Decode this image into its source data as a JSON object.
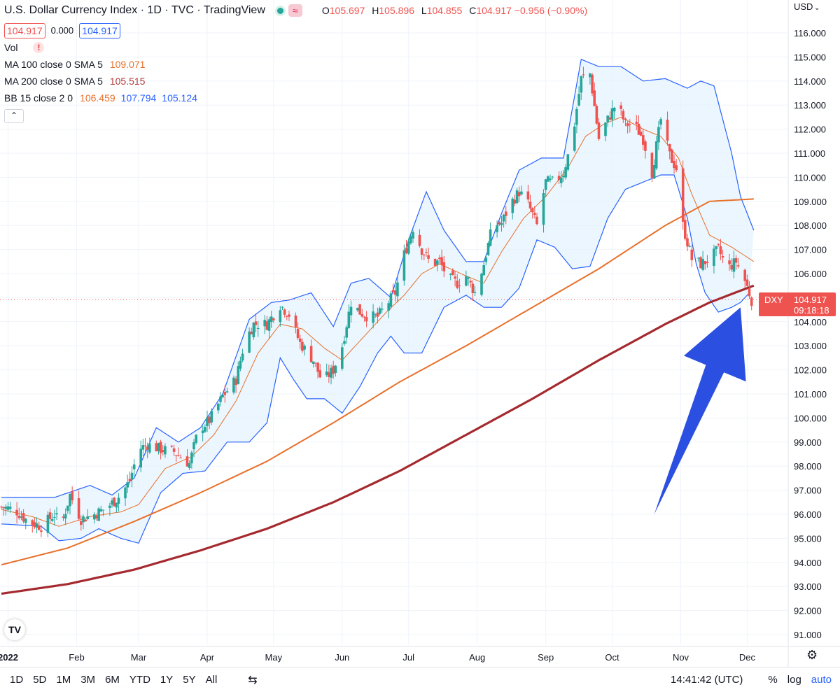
{
  "header": {
    "title": "U.S. Dollar Currency Index · 1D · TVC · TradingView",
    "wave_icon": "≈",
    "ohlc": {
      "o_label": "O",
      "o": "105.697",
      "h_label": "H",
      "h": "105.896",
      "l_label": "L",
      "l": "104.855",
      "c_label": "C",
      "c": "104.917",
      "change": "−0.956 (−0.90%)"
    },
    "bid": "104.917",
    "spread": "0.000",
    "ask": "104.917"
  },
  "indicators": {
    "vol": {
      "name": "Vol",
      "warning": "!"
    },
    "ma100": {
      "name": "MA 100 close 0 SMA 5",
      "value": "109.071"
    },
    "ma200": {
      "name": "MA 200 close 0 SMA 5",
      "value": "105.515"
    },
    "bb": {
      "name": "BB 15 close 2 0",
      "basis": "106.459",
      "upper": "107.794",
      "lower": "105.124"
    },
    "collapse_icon": "⌃"
  },
  "colors": {
    "up": "#26a69a",
    "down": "#ef5350",
    "bb_band": "#2962ff",
    "bb_fill": "#e3f2fd",
    "ma100": "#e8702a",
    "ma200": "#a52a2f",
    "arrow": "#2b4fe0"
  },
  "chart_data": {
    "type": "candlestick",
    "title": "U.S. Dollar Currency Index · 1D · TVC · TradingView",
    "currency": "USD",
    "ylim": [
      90.5,
      117.0
    ],
    "y_ticks": [
      "116.000",
      "115.000",
      "114.000",
      "113.000",
      "112.000",
      "111.000",
      "110.000",
      "109.000",
      "108.000",
      "107.000",
      "106.000",
      "105.000",
      "104.000",
      "103.000",
      "102.000",
      "101.000",
      "100.000",
      "99.000",
      "98.000",
      "97.000",
      "96.000",
      "95.000",
      "94.000",
      "93.000",
      "92.000",
      "91.000"
    ],
    "x_labels": [
      "2022",
      "Feb",
      "Mar",
      "Apr",
      "May",
      "Jun",
      "Jul",
      "Aug",
      "Sep",
      "Oct",
      "Nov",
      "Dec"
    ],
    "x_label_days": [
      3,
      34,
      62,
      93,
      123,
      154,
      184,
      215,
      246,
      276,
      307,
      337
    ],
    "day_range": [
      0,
      341
    ],
    "closes": [
      [
        0,
        96.3
      ],
      [
        6,
        96.2
      ],
      [
        12,
        95.7
      ],
      [
        18,
        95.5
      ],
      [
        24,
        96.0
      ],
      [
        27,
        95.5
      ],
      [
        31,
        96.8
      ],
      [
        36,
        95.8
      ],
      [
        42,
        96.0
      ],
      [
        48,
        96.3
      ],
      [
        54,
        96.8
      ],
      [
        58,
        97.4
      ],
      [
        62,
        98.7
      ],
      [
        66,
        98.9
      ],
      [
        72,
        98.7
      ],
      [
        78,
        98.6
      ],
      [
        85,
        98.1
      ],
      [
        89,
        99.5
      ],
      [
        94,
        99.9
      ],
      [
        100,
        100.9
      ],
      [
        106,
        101.6
      ],
      [
        110,
        103.2
      ],
      [
        114,
        103.9
      ],
      [
        120,
        103.9
      ],
      [
        126,
        104.7
      ],
      [
        130,
        104.3
      ],
      [
        135,
        103.1
      ],
      [
        141,
        102.4
      ],
      [
        145,
        101.5
      ],
      [
        150,
        102.0
      ],
      [
        154,
        103.0
      ],
      [
        158,
        104.8
      ],
      [
        162,
        104.4
      ],
      [
        166,
        104.2
      ],
      [
        170,
        104.2
      ],
      [
        174,
        104.7
      ],
      [
        178,
        105.2
      ],
      [
        182,
        106.8
      ],
      [
        186,
        107.9
      ],
      [
        190,
        107.0
      ],
      [
        194,
        106.4
      ],
      [
        198,
        106.5
      ],
      [
        202,
        105.8
      ],
      [
        206,
        105.6
      ],
      [
        210,
        105.9
      ],
      [
        214,
        105.2
      ],
      [
        218,
        106.4
      ],
      [
        222,
        108.0
      ],
      [
        226,
        108.1
      ],
      [
        230,
        108.9
      ],
      [
        234,
        109.4
      ],
      [
        238,
        108.9
      ],
      [
        242,
        108.0
      ],
      [
        246,
        109.8
      ],
      [
        250,
        109.8
      ],
      [
        254,
        110.2
      ],
      [
        258,
        111.6
      ],
      [
        262,
        114.1
      ],
      [
        266,
        114.3
      ],
      [
        270,
        111.6
      ],
      [
        274,
        112.4
      ],
      [
        278,
        113.1
      ],
      [
        282,
        112.2
      ],
      [
        286,
        112.2
      ],
      [
        290,
        111.6
      ],
      [
        294,
        110.2
      ],
      [
        298,
        112.4
      ],
      [
        302,
        110.9
      ],
      [
        306,
        110.2
      ],
      [
        308,
        108.0
      ],
      [
        312,
        106.6
      ],
      [
        316,
        106.4
      ],
      [
        320,
        106.6
      ],
      [
        324,
        107.0
      ],
      [
        328,
        106.2
      ],
      [
        332,
        106.5
      ],
      [
        336,
        105.7
      ],
      [
        339,
        104.9
      ]
    ],
    "bb_upper": [
      [
        0,
        96.7
      ],
      [
        24,
        96.7
      ],
      [
        40,
        97.2
      ],
      [
        50,
        96.8
      ],
      [
        60,
        97.5
      ],
      [
        70,
        99.6
      ],
      [
        80,
        99.0
      ],
      [
        90,
        99.6
      ],
      [
        100,
        101.0
      ],
      [
        112,
        104.1
      ],
      [
        122,
        104.8
      ],
      [
        130,
        104.9
      ],
      [
        140,
        105.2
      ],
      [
        150,
        103.8
      ],
      [
        158,
        105.6
      ],
      [
        166,
        105.8
      ],
      [
        176,
        105.0
      ],
      [
        184,
        107.4
      ],
      [
        192,
        109.4
      ],
      [
        200,
        107.8
      ],
      [
        210,
        106.5
      ],
      [
        218,
        106.5
      ],
      [
        226,
        108.5
      ],
      [
        234,
        110.3
      ],
      [
        244,
        110.8
      ],
      [
        254,
        110.8
      ],
      [
        262,
        114.9
      ],
      [
        270,
        114.6
      ],
      [
        280,
        114.6
      ],
      [
        290,
        114.0
      ],
      [
        300,
        114.1
      ],
      [
        310,
        113.7
      ],
      [
        316,
        114.0
      ],
      [
        322,
        113.8
      ],
      [
        330,
        111.0
      ],
      [
        334,
        109.2
      ],
      [
        340,
        107.8
      ]
    ],
    "bb_lower": [
      [
        0,
        95.6
      ],
      [
        18,
        95.5
      ],
      [
        26,
        94.9
      ],
      [
        36,
        95.0
      ],
      [
        44,
        95.4
      ],
      [
        54,
        95.0
      ],
      [
        62,
        94.8
      ],
      [
        72,
        96.9
      ],
      [
        82,
        97.7
      ],
      [
        92,
        97.8
      ],
      [
        102,
        99.0
      ],
      [
        112,
        99.0
      ],
      [
        120,
        99.8
      ],
      [
        126,
        102.5
      ],
      [
        132,
        101.6
      ],
      [
        138,
        100.8
      ],
      [
        146,
        100.8
      ],
      [
        154,
        100.2
      ],
      [
        162,
        101.3
      ],
      [
        170,
        102.7
      ],
      [
        176,
        103.4
      ],
      [
        182,
        102.7
      ],
      [
        190,
        102.7
      ],
      [
        200,
        104.6
      ],
      [
        210,
        105.1
      ],
      [
        218,
        104.6
      ],
      [
        226,
        104.6
      ],
      [
        234,
        105.4
      ],
      [
        242,
        107.4
      ],
      [
        250,
        107.1
      ],
      [
        258,
        106.2
      ],
      [
        266,
        106.3
      ],
      [
        274,
        108.3
      ],
      [
        282,
        109.5
      ],
      [
        290,
        109.8
      ],
      [
        298,
        110.1
      ],
      [
        304,
        110.1
      ],
      [
        310,
        108.3
      ],
      [
        314,
        106.4
      ],
      [
        318,
        105.2
      ],
      [
        324,
        104.4
      ],
      [
        330,
        104.6
      ],
      [
        334,
        104.8
      ],
      [
        338,
        105.2
      ]
    ],
    "bb_basis": [
      [
        0,
        96.2
      ],
      [
        14,
        95.9
      ],
      [
        26,
        95.5
      ],
      [
        40,
        95.9
      ],
      [
        54,
        96.1
      ],
      [
        62,
        96.4
      ],
      [
        74,
        97.9
      ],
      [
        86,
        98.4
      ],
      [
        96,
        99.3
      ],
      [
        106,
        100.7
      ],
      [
        116,
        102.7
      ],
      [
        126,
        103.9
      ],
      [
        136,
        103.7
      ],
      [
        146,
        102.9
      ],
      [
        154,
        102.4
      ],
      [
        164,
        103.4
      ],
      [
        174,
        104.4
      ],
      [
        182,
        105.1
      ],
      [
        190,
        106.0
      ],
      [
        198,
        106.4
      ],
      [
        210,
        105.9
      ],
      [
        218,
        105.6
      ],
      [
        226,
        106.9
      ],
      [
        236,
        108.3
      ],
      [
        246,
        109.2
      ],
      [
        256,
        110.4
      ],
      [
        264,
        111.7
      ],
      [
        272,
        112.2
      ],
      [
        280,
        112.5
      ],
      [
        290,
        112.0
      ],
      [
        298,
        111.7
      ],
      [
        306,
        110.8
      ],
      [
        312,
        109.3
      ],
      [
        320,
        107.6
      ],
      [
        330,
        107.1
      ],
      [
        340,
        106.5
      ]
    ],
    "ma100": [
      [
        0,
        93.9
      ],
      [
        30,
        94.6
      ],
      [
        60,
        95.7
      ],
      [
        90,
        96.9
      ],
      [
        120,
        98.2
      ],
      [
        150,
        99.8
      ],
      [
        180,
        101.5
      ],
      [
        210,
        103.0
      ],
      [
        240,
        104.6
      ],
      [
        270,
        106.2
      ],
      [
        300,
        108.0
      ],
      [
        320,
        109.0
      ],
      [
        340,
        109.1
      ]
    ],
    "ma200": [
      [
        0,
        92.7
      ],
      [
        30,
        93.1
      ],
      [
        60,
        93.7
      ],
      [
        90,
        94.5
      ],
      [
        120,
        95.4
      ],
      [
        150,
        96.5
      ],
      [
        180,
        97.8
      ],
      [
        210,
        99.3
      ],
      [
        240,
        100.8
      ],
      [
        270,
        102.4
      ],
      [
        300,
        103.9
      ],
      [
        320,
        104.8
      ],
      [
        340,
        105.5
      ]
    ],
    "last_price": {
      "symbol": "DXY",
      "value": "104.917",
      "countdown": "09:18:18",
      "price": 104.917
    },
    "annotation": {
      "type": "arrow",
      "from_day": 295,
      "from_price": 96.0,
      "to_day": 334,
      "to_price": 104.6
    }
  },
  "bottom_bar": {
    "ranges": [
      "1D",
      "5D",
      "1M",
      "3M",
      "6M",
      "YTD",
      "1Y",
      "5Y",
      "All"
    ],
    "compare_icon": "⇆",
    "clock": "14:41:42 (UTC)",
    "percent": "%",
    "log": "log",
    "auto": "auto"
  },
  "logo": "TV",
  "gear_icon": "⚙"
}
